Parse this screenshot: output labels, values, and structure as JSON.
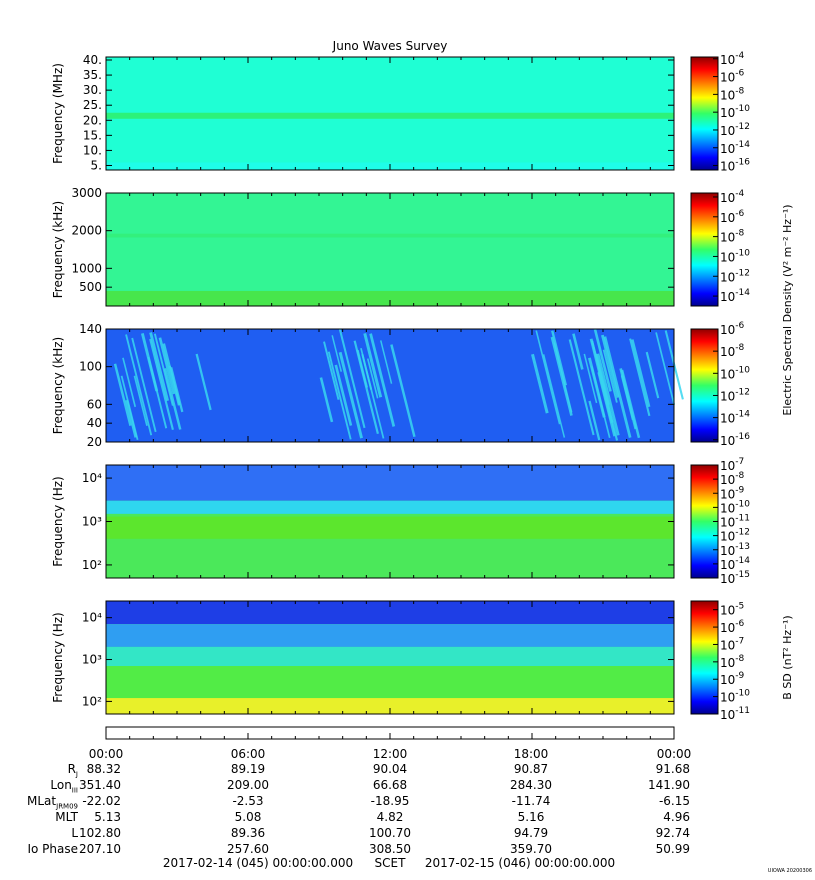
{
  "title": "Juno Waves Survey",
  "footer": {
    "start": "2017-02-14 (045) 00:00:00.000",
    "mid": "SCET",
    "end": "2017-02-15 (046) 00:00:00.000",
    "stamp": "UIOWA 20200306"
  },
  "shared_cbar_label": "Electric Spectral Density (V² m⁻² Hz⁻¹)",
  "chart_data": [
    {
      "type": "heatmap",
      "ylabel": "Frequency (MHz)",
      "yscale": "linear",
      "ylim": [
        3.5,
        41
      ],
      "yticks": [
        5,
        10,
        15,
        20,
        25,
        30,
        35,
        40
      ],
      "yticklabels": [
        "5.",
        "10.",
        "15.",
        "20.",
        "25.",
        "30.",
        "35.",
        "40."
      ],
      "color_range": [
        -16.5,
        -3.8
      ],
      "cbar_ticks": [
        -16,
        -14,
        -12,
        -10,
        -8,
        -6,
        -4
      ],
      "cbar_label": "",
      "background": "#1fffd4",
      "features": [
        {
          "kind": "band",
          "y0": 20.5,
          "y1": 22.5,
          "color": "#2cf27a"
        },
        {
          "kind": "band",
          "y0": 3.5,
          "y1": 6,
          "color": "#1ffde8"
        }
      ]
    },
    {
      "type": "heatmap",
      "ylabel": "Frequency (kHz)",
      "yscale": "linear",
      "ylim": [
        0,
        3000
      ],
      "yticks": [
        500,
        1000,
        2000,
        3000
      ],
      "yticklabels": [
        "500",
        "1000",
        "2000",
        "3000"
      ],
      "color_range": [
        -15,
        -3.6
      ],
      "cbar_ticks": [
        -14,
        -12,
        -10,
        -8,
        -6,
        -4
      ],
      "cbar_label": "Electric Spectral Density",
      "background": "#33f594",
      "features": [
        {
          "kind": "band",
          "y0": 1820,
          "y1": 1920,
          "color": "#33f07c"
        },
        {
          "kind": "gradient-bottom",
          "y0": 0,
          "y1": 400,
          "color": "#4ce23a"
        }
      ]
    },
    {
      "type": "heatmap",
      "ylabel": "Frequency (kHz)",
      "yscale": "linear",
      "ylim": [
        20,
        140
      ],
      "yticks": [
        20,
        40,
        60,
        100,
        140
      ],
      "yticklabels": [
        "20",
        "40",
        "60",
        "100",
        "140"
      ],
      "color_range": [
        -16.2,
        -6
      ],
      "cbar_ticks": [
        -16,
        -14,
        -12,
        -10,
        -8,
        -6
      ],
      "cbar_label": "",
      "background": "#1f5ef2",
      "features": [
        {
          "kind": "bursts",
          "t0": 0.2,
          "t1": 4.0,
          "color": "#38d6f0"
        },
        {
          "kind": "bursts",
          "t0": 9.0,
          "t1": 12.3,
          "color": "#38d6f0"
        },
        {
          "kind": "bursts",
          "t0": 17.7,
          "t1": 23.9,
          "color": "#38d6f0"
        }
      ]
    },
    {
      "type": "heatmap",
      "ylabel": "Frequency (Hz)",
      "yscale": "log",
      "ylim": [
        50,
        20000
      ],
      "yticks": [
        100,
        1000,
        10000
      ],
      "yticklabels": [
        "10²",
        "10³",
        "10⁴"
      ],
      "color_range": [
        -15,
        -7
      ],
      "cbar_ticks": [
        -15,
        -14,
        -13,
        -12,
        -11,
        -10,
        -9,
        -8,
        -7
      ],
      "cbar_label": "",
      "background": "#4be85a",
      "features": [
        {
          "kind": "band",
          "y0": 3000,
          "y1": 20000,
          "color": "#2f6ff5"
        },
        {
          "kind": "band",
          "y0": 1500,
          "y1": 3000,
          "color": "#2fd6ef"
        },
        {
          "kind": "band",
          "y0": 400,
          "y1": 1300,
          "color": "#5ce62d"
        }
      ]
    },
    {
      "type": "heatmap",
      "ylabel": "Frequency (Hz)",
      "yscale": "log",
      "ylim": [
        50,
        25000
      ],
      "yticks": [
        100,
        1000,
        10000
      ],
      "yticklabels": [
        "10²",
        "10³",
        "10⁴"
      ],
      "color_range": [
        -11,
        -4.5
      ],
      "cbar_ticks": [
        -11,
        -10,
        -9,
        -8,
        -7,
        -6,
        -5
      ],
      "cbar_label": "B SD (nT² Hz⁻¹)",
      "background": "#52ec46",
      "features": [
        {
          "kind": "band",
          "y0": 7000,
          "y1": 25000,
          "color": "#1e3ee6"
        },
        {
          "kind": "band",
          "y0": 2000,
          "y1": 7000,
          "color": "#2f9ef2"
        },
        {
          "kind": "band",
          "y0": 700,
          "y1": 2000,
          "color": "#33e6c6"
        },
        {
          "kind": "band",
          "y0": 50,
          "y1": 120,
          "color": "#e8f02a"
        }
      ]
    }
  ],
  "time_axis": {
    "xlim_hours": [
      0,
      24
    ],
    "major_ticks": [
      0,
      6,
      12,
      18,
      24
    ],
    "minor_step_hours": 1
  },
  "ephemeris": {
    "times": [
      "00:00",
      "06:00",
      "12:00",
      "18:00",
      "00:00"
    ],
    "rows": [
      {
        "label": "R",
        "sub": "J",
        "values": [
          "88.32",
          "89.19",
          "90.04",
          "90.87",
          "91.68"
        ]
      },
      {
        "label": "Lon",
        "sub": "III",
        "values": [
          "351.40",
          "209.00",
          "66.68",
          "284.30",
          "141.90"
        ]
      },
      {
        "label": "MLat",
        "sub": "JRM09",
        "values": [
          "-22.02",
          "-2.53",
          "-18.95",
          "-11.74",
          "-6.15"
        ]
      },
      {
        "label": "MLT",
        "sub": "",
        "values": [
          "5.13",
          "5.08",
          "4.82",
          "5.16",
          "4.96"
        ]
      },
      {
        "label": "L",
        "sub": "",
        "values": [
          "102.80",
          "89.36",
          "100.70",
          "94.79",
          "92.74"
        ]
      },
      {
        "label": "Io Phase",
        "sub": "",
        "values": [
          "207.10",
          "257.60",
          "308.50",
          "359.70",
          "50.99"
        ]
      }
    ]
  }
}
